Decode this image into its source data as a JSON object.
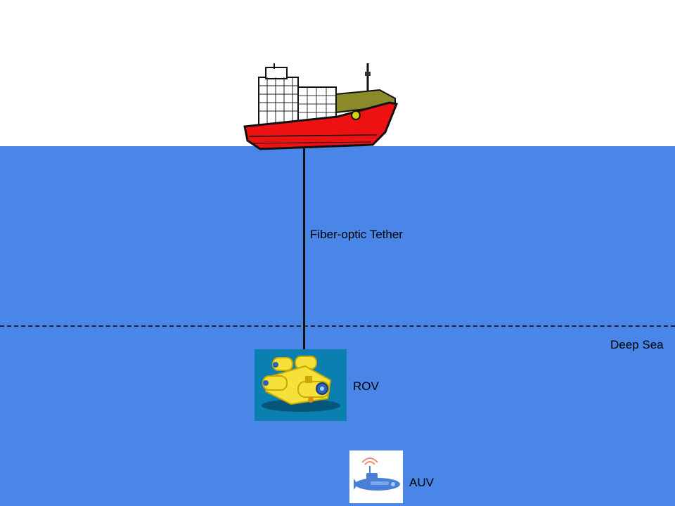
{
  "labels": {
    "tether": "Fiber-optic Tether",
    "deep_sea": "Deep Sea",
    "rov": "ROV",
    "auv": "AUV"
  },
  "icons": {
    "ship": "ship-icon",
    "rov": "rov-icon",
    "auv": "auv-icon"
  },
  "colors": {
    "sea": "#4a86e8",
    "sky": "#ffffff",
    "ship_hull": "#ee1111",
    "rov_background": "#0a7fb0",
    "rov_body": "#f5e13a",
    "auv_body": "#4a7fd8"
  }
}
